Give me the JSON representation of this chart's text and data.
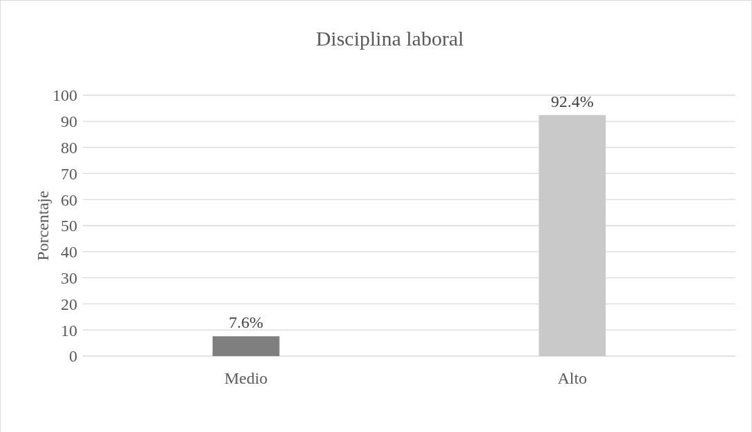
{
  "chart_data": {
    "type": "bar",
    "title": "Disciplina laboral",
    "ylabel": "Porcentaje",
    "categories": [
      "Medio",
      "Alto"
    ],
    "values": [
      7.6,
      92.4
    ],
    "colors": [
      "#7f7f7f",
      "#c9c9c9"
    ],
    "value_labels": [
      "7.6%",
      "92.4%"
    ],
    "ylim": [
      0,
      100
    ],
    "yticks": [
      0,
      10,
      20,
      30,
      40,
      50,
      60,
      70,
      80,
      90,
      100
    ],
    "grid": "y"
  }
}
